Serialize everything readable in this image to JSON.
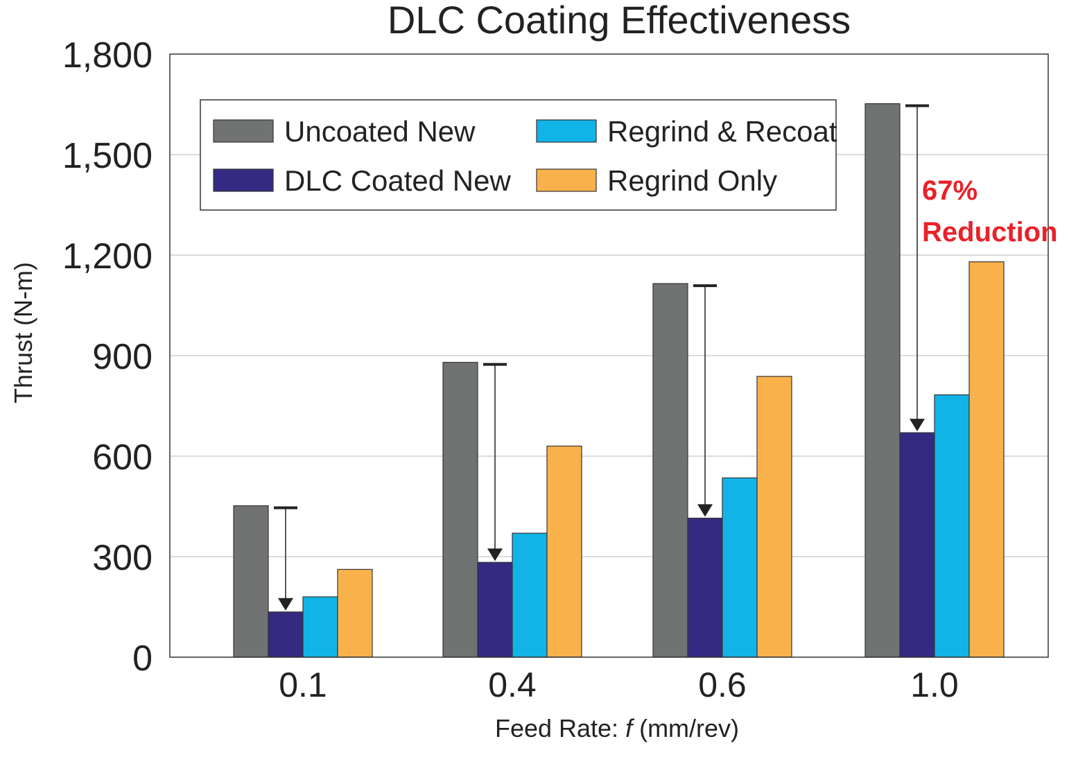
{
  "chart_data": {
    "type": "bar",
    "title": "DLC Coating Effectiveness",
    "xlabel_prefix": "Feed Rate: ",
    "xlabel_var": "f",
    "xlabel_suffix": " (mm/rev)",
    "ylabel": "Thrust  (N-m)",
    "categories": [
      "0.1",
      "0.4",
      "0.6",
      "1.0"
    ],
    "ylim": [
      0,
      1800
    ],
    "yticks": [
      0,
      300,
      600,
      900,
      1200,
      1500,
      1800
    ],
    "ytick_labels": [
      "0",
      "300",
      "600",
      "900",
      "1,200",
      "1,500",
      "1,800"
    ],
    "grid": true,
    "legend_position": "top-left",
    "series": [
      {
        "name": "Uncoated New",
        "color": "#717372",
        "values": [
          452,
          880,
          1115,
          1652
        ]
      },
      {
        "name": "DLC Coated New",
        "color": "#352a82",
        "values": [
          135,
          283,
          415,
          670
        ]
      },
      {
        "name": "Regrind & Recoat",
        "color": "#12b4e8",
        "values": [
          180,
          370,
          535,
          783
        ]
      },
      {
        "name": "Regrind Only",
        "color": "#f9b24b",
        "values": [
          262,
          630,
          838,
          1180
        ]
      }
    ],
    "annotation": {
      "line1": "67%",
      "line2": "Reduction",
      "color": "#e8222a"
    }
  }
}
